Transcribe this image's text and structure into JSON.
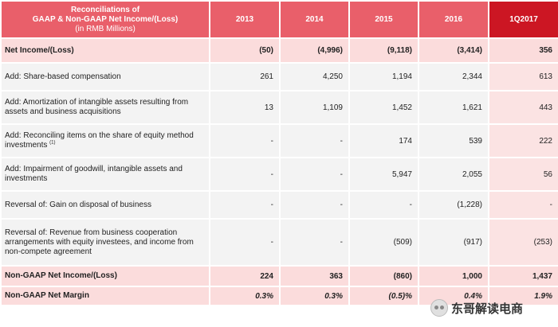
{
  "header": {
    "title_lines": [
      "Reconciliations of",
      "GAAP & Non-GAAP Net Income/(Loss)",
      "(in RMB Millions)"
    ],
    "columns": [
      "2013",
      "2014",
      "2015",
      "2016",
      "1Q2017"
    ]
  },
  "rows": [
    {
      "label": "Net Income/(Loss)",
      "values": [
        "(50)",
        "(4,996)",
        "(9,118)",
        "(3,414)",
        "356"
      ]
    },
    {
      "label": "Add: Share-based compensation",
      "values": [
        "261",
        "4,250",
        "1,194",
        "2,344",
        "613"
      ]
    },
    {
      "label": "Add: Amortization of intangible assets resulting from assets and business acquisitions",
      "values": [
        "13",
        "1,109",
        "1,452",
        "1,621",
        "443"
      ]
    },
    {
      "label": "Add: Reconciling items on the share of equity method investments",
      "sup": "(1)",
      "values": [
        "-",
        "-",
        "174",
        "539",
        "222"
      ]
    },
    {
      "label": "Add: Impairment of goodwill, intangible assets and investments",
      "values": [
        "-",
        "-",
        "5,947",
        "2,055",
        "56"
      ]
    },
    {
      "label": "Reversal of: Gain on disposal of business",
      "values": [
        "-",
        "-",
        "-",
        "(1,228)",
        "-"
      ]
    },
    {
      "label": "Reversal of: Revenue from business cooperation arrangements with equity investees, and income from non-compete agreement",
      "values": [
        "-",
        "-",
        "(509)",
        "(917)",
        "(253)"
      ]
    },
    {
      "label": "Non-GAAP Net Income/(Loss)",
      "values": [
        "224",
        "363",
        "(860)",
        "1,000",
        "1,437"
      ]
    },
    {
      "label": "Non-GAAP Net Margin",
      "values": [
        "0.3%",
        "0.3%",
        "(0.5)%",
        "0.4%",
        "1.9%"
      ]
    }
  ],
  "watermark": {
    "text": "东哥解读电商",
    "icon": "wechat-icon"
  }
}
